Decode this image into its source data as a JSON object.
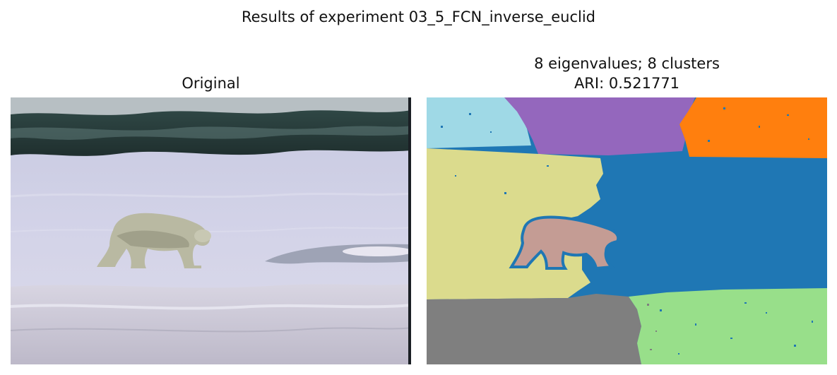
{
  "figure": {
    "suptitle": "Results of experiment 03_5_FCN_inverse_euclid"
  },
  "left": {
    "title": "Original"
  },
  "right": {
    "title_line1": "8 eigenvalues; 8 clusters",
    "title_line2": "ARI: 0.521771"
  },
  "colors": {
    "cluster_light_blue": "#9fd9e6",
    "cluster_purple": "#9467bd",
    "cluster_orange": "#ff7f0e",
    "cluster_olive": "#dbdb8d",
    "cluster_blue": "#1f77b4",
    "cluster_pink": "#c49c94",
    "cluster_gray": "#7f7f7f",
    "cluster_green": "#98df8a"
  }
}
